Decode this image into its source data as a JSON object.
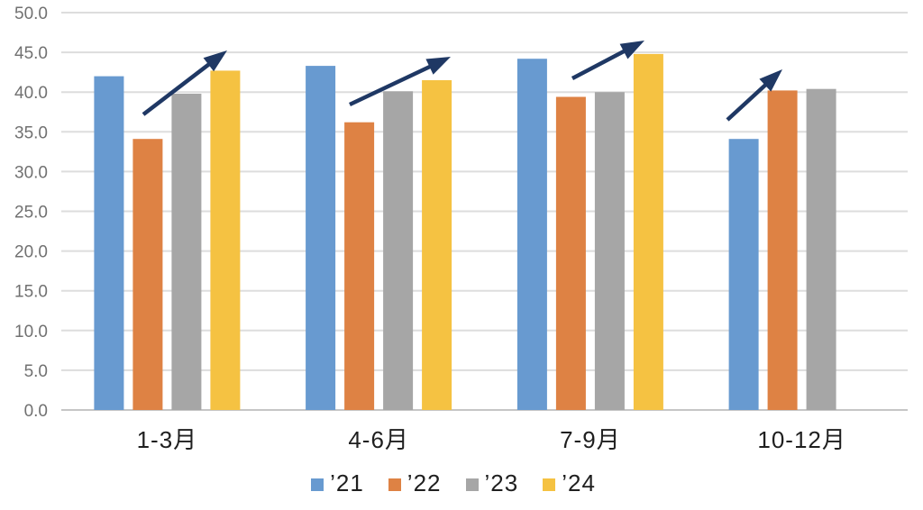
{
  "chart_data": {
    "type": "bar",
    "categories": [
      "1-3月",
      "4-6月",
      "7-9月",
      "10-12月"
    ],
    "series": [
      {
        "name": "’21",
        "color": "#689AD0",
        "values": [
          42.0,
          43.3,
          44.2,
          34.1
        ]
      },
      {
        "name": "’22",
        "color": "#DE8244",
        "values": [
          34.1,
          36.2,
          39.4,
          40.2
        ]
      },
      {
        "name": "’23",
        "color": "#A6A6A6",
        "values": [
          39.8,
          40.1,
          40.0,
          40.4
        ]
      },
      {
        "name": "’24",
        "color": "#F5C242",
        "values": [
          42.7,
          41.5,
          44.8,
          null
        ]
      }
    ],
    "ylim": [
      0,
      50
    ],
    "ytick_step": 5,
    "ytick_decimals": 1,
    "grid": true,
    "legend_position": "bottom",
    "annotations": [
      {
        "type": "arrow",
        "from": [
          159,
          127
        ],
        "to": [
          252,
          56
        ]
      },
      {
        "type": "arrow",
        "from": [
          388,
          116
        ],
        "to": [
          500,
          63
        ]
      },
      {
        "type": "arrow",
        "from": [
          635,
          87
        ],
        "to": [
          715,
          45
        ]
      },
      {
        "type": "arrow",
        "from": [
          807,
          133
        ],
        "to": [
          868,
          77
        ]
      }
    ],
    "colors": {
      "arrow": "#1F3864",
      "grid": "#DDDDDD",
      "axis_line": "#C6C6C6",
      "ytick_label": "#717171",
      "category_label": "#1F1F1F",
      "legend_label": "#1F1F1F",
      "background": "#FFFFFF"
    }
  }
}
